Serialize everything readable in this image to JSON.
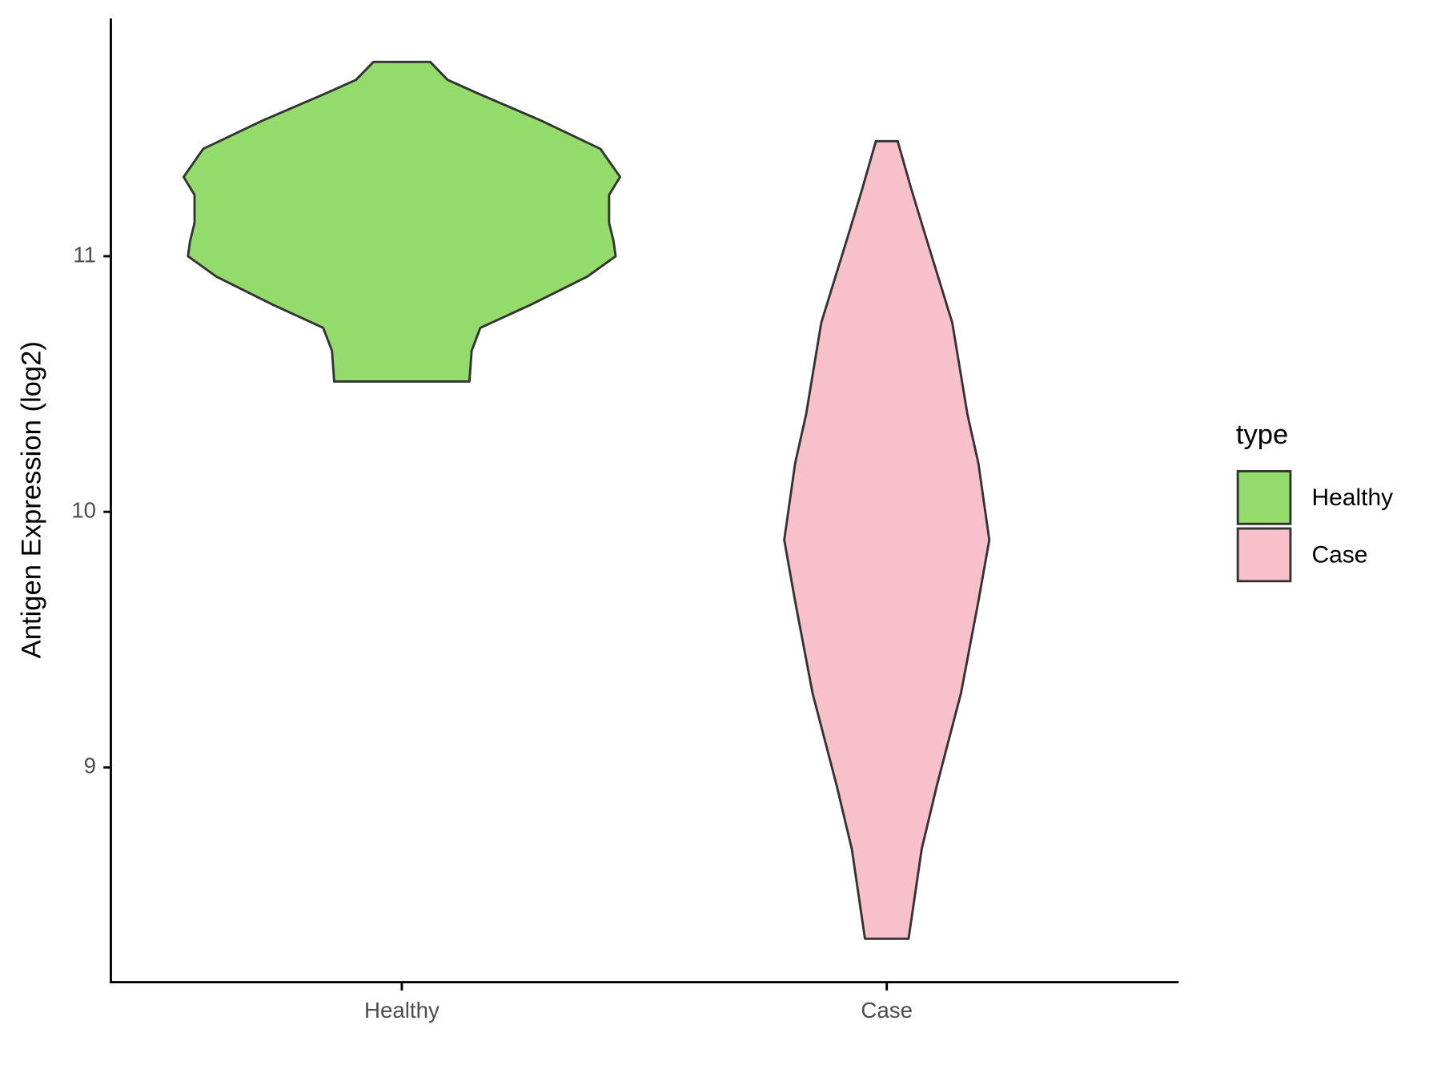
{
  "chart_data": {
    "type": "violin",
    "ylabel": "Antigen Expression (log2)",
    "categories": [
      "Healthy",
      "Case"
    ],
    "series": [
      {
        "name": "Healthy",
        "color": "#93dc6b",
        "y": [
          11.76,
          11.69,
          11.64,
          11.53,
          11.42,
          11.31,
          11.24,
          11.13,
          11.06,
          11.0,
          10.92,
          10.81,
          10.72,
          10.63,
          10.51
        ],
        "width": [
          0.13,
          0.21,
          0.34,
          0.64,
          0.91,
          1.0,
          0.95,
          0.95,
          0.97,
          0.98,
          0.85,
          0.59,
          0.36,
          0.32,
          0.31
        ]
      },
      {
        "name": "Case",
        "color": "#f7c0cb",
        "y": [
          11.45,
          11.27,
          11.1,
          10.74,
          10.38,
          10.19,
          9.89,
          9.65,
          9.29,
          8.93,
          8.68,
          8.33
        ],
        "width": [
          0.05,
          0.11,
          0.17,
          0.3,
          0.37,
          0.42,
          0.47,
          0.42,
          0.34,
          0.23,
          0.16,
          0.1
        ]
      }
    ],
    "legend_title": "type",
    "legend_position": "right",
    "ylim": [
      8.16,
      11.93
    ],
    "yticks": [
      9,
      10,
      11
    ]
  }
}
